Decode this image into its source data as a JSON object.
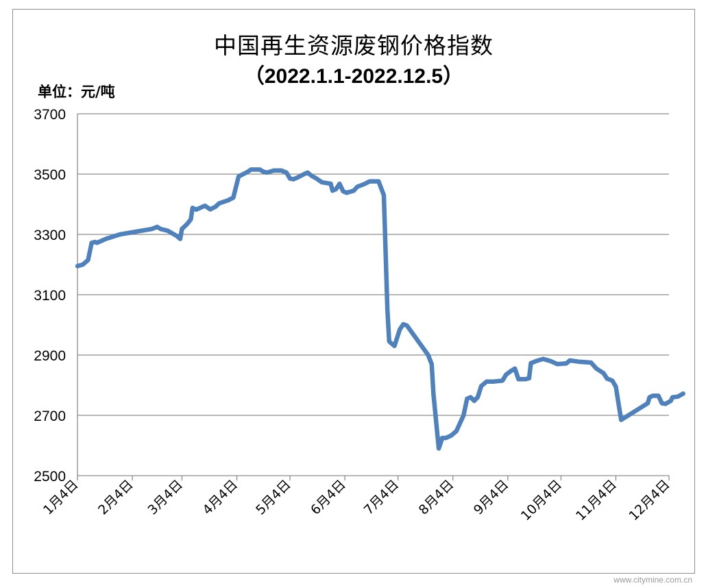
{
  "chart_data": {
    "type": "line",
    "title": "中国再生资源废钢价格指数",
    "subtitle": "（2022.1.1-2022.12.5）",
    "unit_label": "单位：元/吨",
    "ylim": [
      2500,
      3700
    ],
    "yticks": [
      2500,
      2700,
      2900,
      3100,
      3300,
      3500,
      3700
    ],
    "grid": true,
    "x_tick_labels": [
      "1月4日",
      "2月4日",
      "3月4日",
      "4月4日",
      "5月4日",
      "6月4日",
      "7月4日",
      "8月4日",
      "9月4日",
      "10月4日",
      "11月4日",
      "12月4日"
    ],
    "x_tick_dates": [
      "2022-01-04",
      "2022-02-04",
      "2022-03-04",
      "2022-04-04",
      "2022-05-04",
      "2022-06-04",
      "2022-07-04",
      "2022-08-04",
      "2022-09-04",
      "2022-10-04",
      "2022-11-04",
      "2022-12-04"
    ],
    "series": [
      {
        "color": "#4f81bd",
        "points": [
          [
            "2022-01-04",
            3195
          ],
          [
            "2022-01-07",
            3200
          ],
          [
            "2022-01-10",
            3215
          ],
          [
            "2022-01-12",
            3272
          ],
          [
            "2022-01-14",
            3275
          ],
          [
            "2022-01-15",
            3272
          ],
          [
            "2022-01-20",
            3285
          ],
          [
            "2022-01-28",
            3300
          ],
          [
            "2022-02-15",
            3318
          ],
          [
            "2022-02-18",
            3325
          ],
          [
            "2022-02-20",
            3318
          ],
          [
            "2022-02-22",
            3315
          ],
          [
            "2022-02-24",
            3312
          ],
          [
            "2022-03-01",
            3295
          ],
          [
            "2022-03-03",
            3285
          ],
          [
            "2022-03-04",
            3318
          ],
          [
            "2022-03-07",
            3335
          ],
          [
            "2022-03-09",
            3350
          ],
          [
            "2022-03-10",
            3388
          ],
          [
            "2022-03-12",
            3382
          ],
          [
            "2022-03-17",
            3395
          ],
          [
            "2022-03-20",
            3383
          ],
          [
            "2022-03-23",
            3392
          ],
          [
            "2022-03-25",
            3403
          ],
          [
            "2022-03-30",
            3413
          ],
          [
            "2022-04-02",
            3422
          ],
          [
            "2022-04-05",
            3492
          ],
          [
            "2022-04-10",
            3507
          ],
          [
            "2022-04-12",
            3515
          ],
          [
            "2022-04-17",
            3515
          ],
          [
            "2022-04-19",
            3508
          ],
          [
            "2022-04-21",
            3505
          ],
          [
            "2022-04-25",
            3512
          ],
          [
            "2022-04-29",
            3512
          ],
          [
            "2022-05-02",
            3505
          ],
          [
            "2022-05-04",
            3485
          ],
          [
            "2022-05-06",
            3483
          ],
          [
            "2022-05-08",
            3488
          ],
          [
            "2022-05-12",
            3500
          ],
          [
            "2022-05-14",
            3505
          ],
          [
            "2022-05-16",
            3495
          ],
          [
            "2022-05-19",
            3485
          ],
          [
            "2022-05-22",
            3473
          ],
          [
            "2022-05-27",
            3468
          ],
          [
            "2022-05-28",
            3445
          ],
          [
            "2022-05-30",
            3450
          ],
          [
            "2022-06-01",
            3468
          ],
          [
            "2022-06-03",
            3443
          ],
          [
            "2022-06-05",
            3438
          ],
          [
            "2022-06-09",
            3445
          ],
          [
            "2022-06-11",
            3458
          ],
          [
            "2022-06-15",
            3467
          ],
          [
            "2022-06-18",
            3476
          ],
          [
            "2022-06-23",
            3476
          ],
          [
            "2022-06-26",
            3430
          ],
          [
            "2022-06-28",
            3050
          ],
          [
            "2022-06-29",
            2945
          ],
          [
            "2022-07-02",
            2930
          ],
          [
            "2022-07-05",
            2985
          ],
          [
            "2022-07-07",
            3002
          ],
          [
            "2022-07-09",
            2998
          ],
          [
            "2022-07-21",
            2900
          ],
          [
            "2022-07-23",
            2870
          ],
          [
            "2022-07-24",
            2770
          ],
          [
            "2022-07-27",
            2590
          ],
          [
            "2022-07-29",
            2625
          ],
          [
            "2022-07-31",
            2625
          ],
          [
            "2022-08-03",
            2633
          ],
          [
            "2022-08-06",
            2648
          ],
          [
            "2022-08-10",
            2700
          ],
          [
            "2022-08-12",
            2755
          ],
          [
            "2022-08-14",
            2760
          ],
          [
            "2022-08-16",
            2748
          ],
          [
            "2022-08-18",
            2760
          ],
          [
            "2022-08-20",
            2797
          ],
          [
            "2022-08-23",
            2812
          ],
          [
            "2022-08-27",
            2812
          ],
          [
            "2022-09-01",
            2815
          ],
          [
            "2022-09-03",
            2835
          ],
          [
            "2022-09-06",
            2848
          ],
          [
            "2022-09-08",
            2855
          ],
          [
            "2022-09-10",
            2820
          ],
          [
            "2022-09-14",
            2820
          ],
          [
            "2022-09-16",
            2823
          ],
          [
            "2022-09-17",
            2873
          ],
          [
            "2022-09-20",
            2880
          ],
          [
            "2022-09-24",
            2887
          ],
          [
            "2022-09-28",
            2880
          ],
          [
            "2022-10-02",
            2870
          ],
          [
            "2022-10-07",
            2872
          ],
          [
            "2022-10-09",
            2882
          ],
          [
            "2022-10-14",
            2878
          ],
          [
            "2022-10-21",
            2875
          ],
          [
            "2022-10-24",
            2855
          ],
          [
            "2022-10-28",
            2840
          ],
          [
            "2022-10-30",
            2822
          ],
          [
            "2022-11-02",
            2815
          ],
          [
            "2022-11-04",
            2795
          ],
          [
            "2022-11-07",
            2685
          ],
          [
            "2022-11-22",
            2740
          ],
          [
            "2022-11-23",
            2760
          ],
          [
            "2022-11-25",
            2765
          ],
          [
            "2022-11-28",
            2765
          ],
          [
            "2022-11-30",
            2740
          ],
          [
            "2022-12-02",
            2738
          ],
          [
            "2022-12-05",
            2748
          ],
          [
            "2022-12-06",
            2760
          ],
          [
            "2022-12-09",
            2762
          ],
          [
            "2022-12-12",
            2772
          ]
        ]
      }
    ]
  },
  "watermark": "www.citymine.com.cn"
}
